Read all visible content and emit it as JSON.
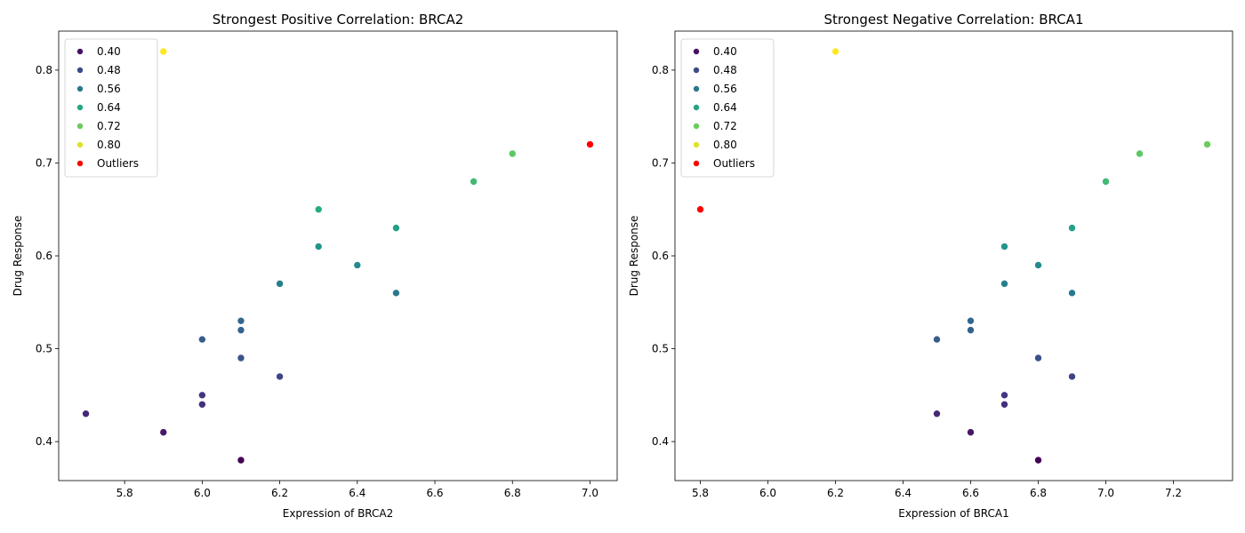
{
  "chart_data": [
    {
      "type": "scatter",
      "title": "Strongest Positive Correlation: BRCA2",
      "xlabel": "Expression of BRCA2",
      "ylabel": "Drug Response",
      "xlim": [
        5.63,
        7.07
      ],
      "ylim": [
        0.358,
        0.842
      ],
      "xticks": [
        5.8,
        6.0,
        6.2,
        6.4,
        6.6,
        6.8,
        7.0
      ],
      "yticks": [
        0.4,
        0.5,
        0.6,
        0.7,
        0.8
      ],
      "legend_position": "top-left",
      "colormap": "viridis",
      "points": [
        {
          "x": 5.7,
          "y": 0.43
        },
        {
          "x": 5.9,
          "y": 0.41
        },
        {
          "x": 6.0,
          "y": 0.45
        },
        {
          "x": 6.0,
          "y": 0.44
        },
        {
          "x": 6.0,
          "y": 0.51
        },
        {
          "x": 6.1,
          "y": 0.53
        },
        {
          "x": 6.1,
          "y": 0.52
        },
        {
          "x": 6.1,
          "y": 0.49
        },
        {
          "x": 6.1,
          "y": 0.38
        },
        {
          "x": 6.2,
          "y": 0.47
        },
        {
          "x": 6.2,
          "y": 0.57
        },
        {
          "x": 6.3,
          "y": 0.65
        },
        {
          "x": 6.3,
          "y": 0.61
        },
        {
          "x": 6.4,
          "y": 0.59
        },
        {
          "x": 6.5,
          "y": 0.63
        },
        {
          "x": 6.5,
          "y": 0.56
        },
        {
          "x": 6.7,
          "y": 0.68
        },
        {
          "x": 6.8,
          "y": 0.71
        },
        {
          "x": 5.9,
          "y": 0.82
        }
      ],
      "outliers": [
        {
          "x": 7.0,
          "y": 0.72
        }
      ]
    },
    {
      "type": "scatter",
      "title": "Strongest Negative Correlation: BRCA1",
      "xlabel": "Expression of BRCA1",
      "ylabel": "Drug Response",
      "xlim": [
        5.725,
        7.375
      ],
      "ylim": [
        0.358,
        0.842
      ],
      "xticks": [
        5.8,
        6.0,
        6.2,
        6.4,
        6.6,
        6.8,
        7.0,
        7.2
      ],
      "yticks": [
        0.4,
        0.5,
        0.6,
        0.7,
        0.8
      ],
      "legend_position": "top-left",
      "colormap": "viridis",
      "points": [
        {
          "x": 6.2,
          "y": 0.82
        },
        {
          "x": 7.3,
          "y": 0.72
        },
        {
          "x": 7.1,
          "y": 0.71
        },
        {
          "x": 7.0,
          "y": 0.68
        },
        {
          "x": 6.9,
          "y": 0.63
        },
        {
          "x": 6.7,
          "y": 0.61
        },
        {
          "x": 6.8,
          "y": 0.59
        },
        {
          "x": 6.7,
          "y": 0.57
        },
        {
          "x": 6.9,
          "y": 0.56
        },
        {
          "x": 6.6,
          "y": 0.53
        },
        {
          "x": 6.6,
          "y": 0.52
        },
        {
          "x": 6.5,
          "y": 0.51
        },
        {
          "x": 6.8,
          "y": 0.49
        },
        {
          "x": 6.9,
          "y": 0.47
        },
        {
          "x": 6.7,
          "y": 0.45
        },
        {
          "x": 6.7,
          "y": 0.44
        },
        {
          "x": 6.5,
          "y": 0.43
        },
        {
          "x": 6.6,
          "y": 0.41
        },
        {
          "x": 6.8,
          "y": 0.38
        }
      ],
      "outliers": [
        {
          "x": 5.8,
          "y": 0.65
        }
      ]
    }
  ],
  "legend": {
    "entries": [
      "0.40",
      "0.48",
      "0.56",
      "0.64",
      "0.72",
      "0.80"
    ],
    "outlier_label": "Outliers",
    "outlier_color": "#ff0000"
  }
}
